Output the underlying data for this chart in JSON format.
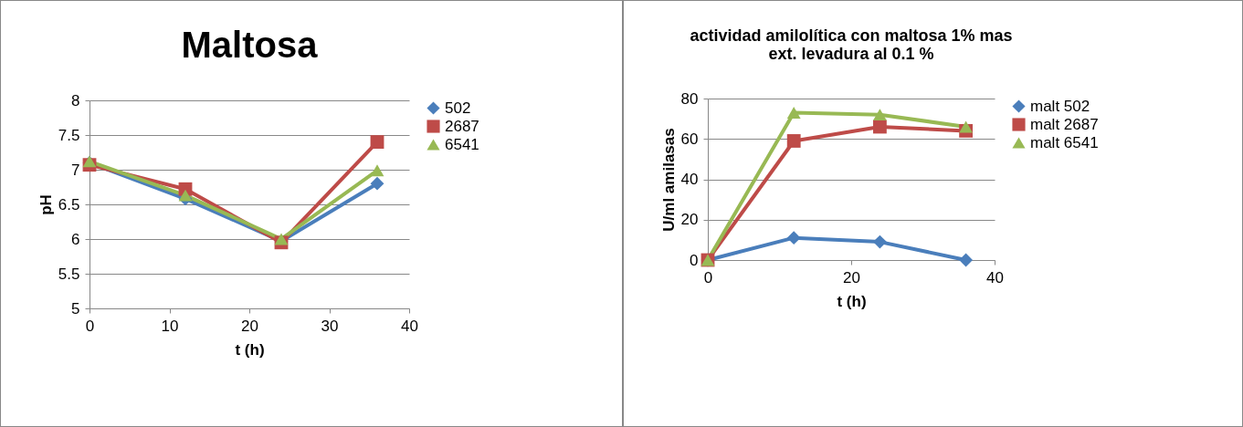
{
  "chart_data": [
    {
      "type": "line",
      "title": "Maltosa",
      "xlabel": "t (h)",
      "ylabel": "pH",
      "x": [
        0,
        12,
        24,
        36
      ],
      "xlim": [
        0,
        40
      ],
      "xticks": [
        0,
        10,
        20,
        30,
        40
      ],
      "ylim": [
        5,
        8
      ],
      "yticks": [
        5,
        5.5,
        6,
        6.5,
        7,
        7.5,
        8
      ],
      "grid": "y",
      "legend": "right",
      "series": [
        {
          "name": "502",
          "color": "#4a7ebb",
          "marker": "diamond",
          "values": [
            7.1,
            6.58,
            5.97,
            6.8
          ]
        },
        {
          "name": "2687",
          "color": "#be4b48",
          "marker": "square",
          "values": [
            7.07,
            6.72,
            5.95,
            7.4
          ]
        },
        {
          "name": "6541",
          "color": "#98b954",
          "marker": "triangle",
          "values": [
            7.12,
            6.63,
            6.0,
            6.99
          ]
        }
      ]
    },
    {
      "type": "line",
      "title": "actividad amilolítica con maltosa 1% mas ext. levadura al 0.1 %",
      "xlabel": "t (h)",
      "ylabel": "U/ml amilasas",
      "x": [
        0,
        12,
        24,
        36
      ],
      "xlim": [
        0,
        40
      ],
      "xticks": [
        0,
        20,
        40
      ],
      "ylim": [
        0,
        80
      ],
      "yticks": [
        0,
        20,
        40,
        60,
        80
      ],
      "grid": "y",
      "legend": "right",
      "series": [
        {
          "name": "malt 502",
          "color": "#4a7ebb",
          "marker": "diamond",
          "values": [
            0,
            11,
            9,
            0
          ]
        },
        {
          "name": "malt 2687",
          "color": "#be4b48",
          "marker": "square",
          "values": [
            0,
            59,
            66,
            64
          ]
        },
        {
          "name": "malt 6541",
          "color": "#98b954",
          "marker": "triangle",
          "values": [
            0,
            73,
            72,
            66
          ]
        }
      ]
    }
  ]
}
